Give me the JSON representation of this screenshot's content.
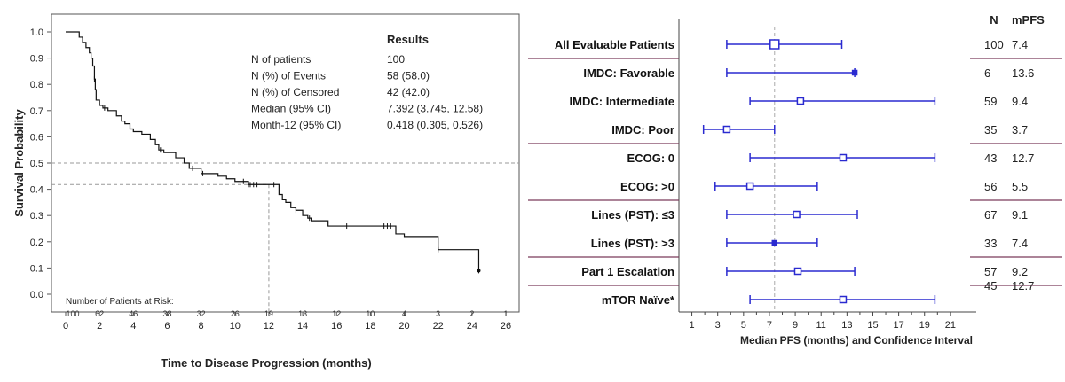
{
  "km": {
    "ylabel": "Survival Probability",
    "xlabel": "Time to Disease Progression (months)",
    "y_ticks": [
      "1.0",
      "0.9",
      "0.8",
      "0.7",
      "0.6",
      "0.5",
      "0.4",
      "0.3",
      "0.2",
      "0.1",
      "0.0"
    ],
    "x_ticks": [
      "0",
      "2",
      "4",
      "6",
      "8",
      "10",
      "12",
      "14",
      "16",
      "18",
      "20",
      "22",
      "24",
      "26"
    ],
    "results": {
      "heading": "Results",
      "rows": [
        {
          "label": "N of patients",
          "value": "100"
        },
        {
          "label": "N (%) of Events",
          "value": "58 (58.0)"
        },
        {
          "label": "N (%) of Censored",
          "value": "42 (42.0)"
        },
        {
          "label": "Median (95% CI)",
          "value": "7.392 (3.745, 12.58)"
        },
        {
          "label": "Month-12 (95% CI)",
          "value": "0.418 (0.305, 0.526)"
        }
      ]
    },
    "at_risk": {
      "label": "Number of Patients at Risk:",
      "values": [
        "100",
        "62",
        "46",
        "38",
        "32",
        "26",
        "19",
        "13",
        "12",
        "10",
        "4",
        "3",
        "2",
        "1"
      ]
    }
  },
  "forest": {
    "col_n": "N",
    "col_mpfs": "mPFS",
    "xlabel": "Median PFS (months) and Confidence Interval",
    "x_ticks": [
      "1",
      "3",
      "5",
      "7",
      "9",
      "11",
      "13",
      "15",
      "17",
      "19",
      "21"
    ]
  },
  "chart_data": [
    {
      "type": "line",
      "title": "",
      "xlabel": "Time to Disease Progression (months)",
      "ylabel": "Survival Probability",
      "xlim": [
        0,
        26
      ],
      "ylim": [
        0,
        1
      ],
      "grid": false,
      "reference_lines": {
        "y": [
          0.5,
          0.418
        ],
        "x": [
          12
        ]
      },
      "series": [
        {
          "x": [
            0,
            0.8,
            1.0,
            1.2,
            1.4,
            1.5,
            1.6,
            1.7,
            1.75,
            1.8,
            2.0,
            2.2,
            2.5,
            2.8,
            3.0,
            3.3,
            3.5,
            3.8,
            4.0,
            4.5,
            5.0,
            5.3,
            5.5,
            5.8,
            6.5,
            7.0,
            7.3,
            7.6,
            8.0,
            8.5,
            9.0,
            9.5,
            10.0,
            10.8,
            12.6,
            12.8,
            13.0,
            13.3,
            13.6,
            14.0,
            14.3,
            14.5,
            15.5,
            19.5,
            20.0,
            22.0,
            24.4
          ],
          "y": [
            1.0,
            0.98,
            0.96,
            0.94,
            0.92,
            0.9,
            0.87,
            0.82,
            0.78,
            0.74,
            0.72,
            0.71,
            0.7,
            0.7,
            0.68,
            0.66,
            0.65,
            0.63,
            0.62,
            0.61,
            0.59,
            0.57,
            0.55,
            0.54,
            0.52,
            0.5,
            0.48,
            0.48,
            0.46,
            0.46,
            0.45,
            0.44,
            0.43,
            0.418,
            0.38,
            0.36,
            0.35,
            0.33,
            0.32,
            0.3,
            0.29,
            0.28,
            0.26,
            0.23,
            0.22,
            0.17,
            0.09
          ]
        }
      ],
      "censor_x": [
        1.7,
        2.3,
        5.6,
        7.5,
        8.1,
        10.5,
        10.8,
        10.9,
        11.1,
        11.3,
        12.3,
        13.6,
        14.4,
        16.6,
        18.8,
        19.0,
        19.2,
        22.0,
        24.4
      ],
      "at_risk_times": [
        0,
        2,
        4,
        6,
        8,
        10,
        12,
        14,
        16,
        18,
        20,
        22,
        24,
        26
      ]
    },
    {
      "type": "scatter",
      "title": "",
      "xlabel": "Median PFS (months) and Confidence Interval",
      "xlim": [
        0,
        23
      ],
      "reference_line_x": 7.4,
      "rows": [
        {
          "label": "All Evaluable Patients",
          "n": "100",
          "mpfs": "7.4",
          "est": 7.4,
          "lo": 3.7,
          "hi": 12.6
        },
        {
          "label": "IMDC: Favorable",
          "n": "6",
          "mpfs": "13.6",
          "est": 13.6,
          "lo": 3.7,
          "hi": 13.6
        },
        {
          "label": "IMDC: Intermediate",
          "n": "59",
          "mpfs": "9.4",
          "est": 9.4,
          "lo": 5.5,
          "hi": 19.8
        },
        {
          "label": "IMDC: Poor",
          "n": "35",
          "mpfs": "3.7",
          "est": 3.7,
          "lo": 1.9,
          "hi": 7.4
        },
        {
          "label": "ECOG: 0",
          "n": "43",
          "mpfs": "12.7",
          "est": 12.7,
          "lo": 5.5,
          "hi": 19.8
        },
        {
          "label": "ECOG: >0",
          "n": "56",
          "mpfs": "5.5",
          "est": 5.5,
          "lo": 2.8,
          "hi": 10.7
        },
        {
          "label": "Lines (PST): ≤3",
          "n": "67",
          "mpfs": "9.1",
          "est": 9.1,
          "lo": 3.7,
          "hi": 13.8
        },
        {
          "label": "Lines (PST): >3",
          "n": "33",
          "mpfs": "7.4",
          "est": 7.4,
          "lo": 3.7,
          "hi": 10.7
        },
        {
          "label": "Part 1 Escalation",
          "n": "57",
          "mpfs": "9.2",
          "est": 9.2,
          "lo": 3.7,
          "hi": 13.6
        },
        {
          "label": "mTOR Naïve*",
          "n": "45",
          "mpfs": "12.7",
          "est": 12.7,
          "lo": 5.5,
          "hi": 19.8
        }
      ],
      "group_dividers_after": [
        0,
        3,
        5,
        7,
        8
      ],
      "marker_style": [
        "open",
        "filled",
        "open",
        "open",
        "open",
        "open",
        "open",
        "filled",
        "open",
        "open"
      ]
    }
  ]
}
